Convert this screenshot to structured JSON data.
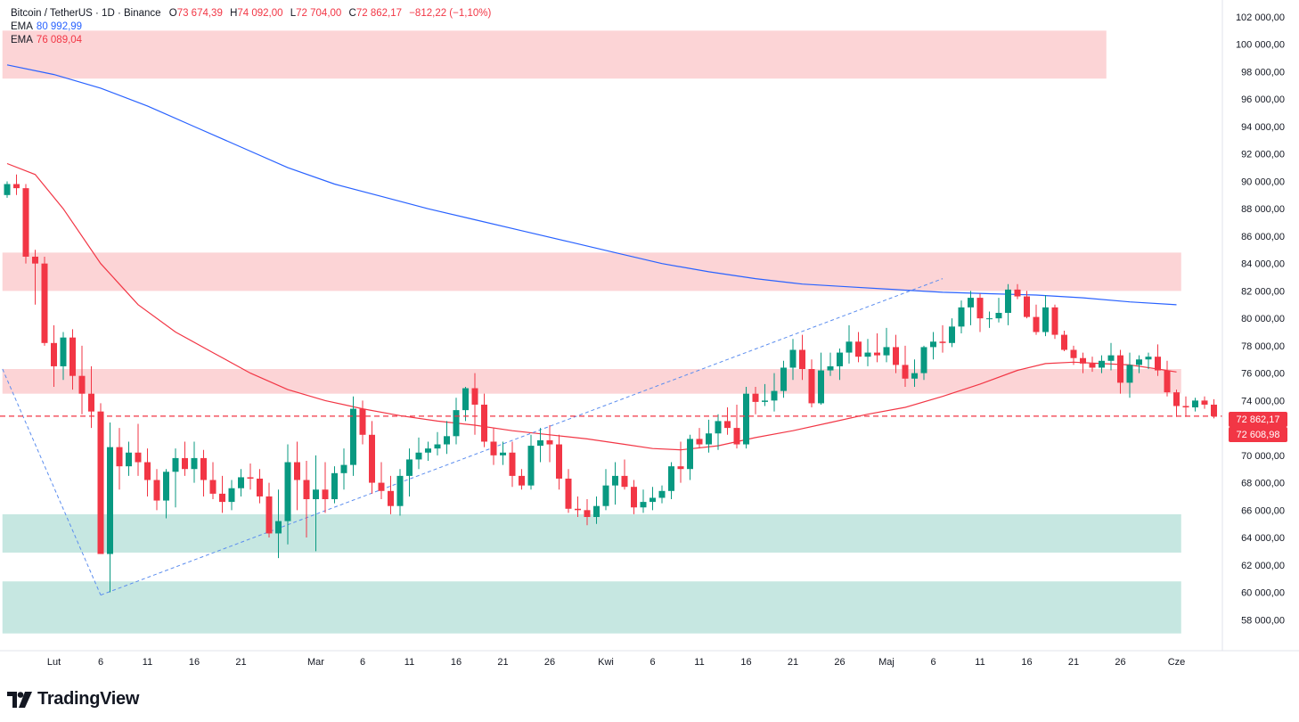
{
  "header": {
    "symbol": "Bitcoin / TetherUS · 1D · Binance",
    "o_label": "O",
    "o_value": "73 674,39",
    "h_label": "H",
    "h_value": "74 092,00",
    "l_label": "L",
    "l_value": "72 704,00",
    "c_label": "C",
    "c_value": "72 862,17",
    "change": "−812,22 (−1,10%)"
  },
  "indicators": [
    {
      "label": "EMA",
      "value": "80 992,99",
      "color": "#2962ff"
    },
    {
      "label": "EMA",
      "value": "76 089,04",
      "color": "#f23645"
    }
  ],
  "price_tags": {
    "last": "72 862,17",
    "second": "72 608,98"
  },
  "logo": {
    "text": "TradingView",
    "icon": "tradingview-logo-icon"
  },
  "colors": {
    "up": "#089981",
    "down": "#f23645",
    "ema_long": "#2962ff",
    "ema_short": "#f23645",
    "zone_red": "#fcd4d6",
    "zone_green": "#c6e7e1"
  },
  "chart_data": {
    "type": "candlestick",
    "title": "",
    "ylim": [
      56500,
      103000
    ],
    "y_ticks": [
      "102 000,00",
      "100 000,00",
      "98 000,00",
      "96 000,00",
      "94 000,00",
      "92 000,00",
      "90 000,00",
      "88 000,00",
      "86 000,00",
      "84 000,00",
      "82 000,00",
      "80 000,00",
      "78 000,00",
      "76 000,00",
      "74 000,00",
      "72 000,00",
      "70 000,00",
      "68 000,00",
      "66 000,00",
      "64 000,00",
      "62 000,00",
      "60 000,00",
      "58 000,00"
    ],
    "y_tick_values": [
      102000,
      100000,
      98000,
      96000,
      94000,
      92000,
      90000,
      88000,
      86000,
      84000,
      82000,
      80000,
      78000,
      76000,
      74000,
      72000,
      70000,
      68000,
      66000,
      64000,
      62000,
      60000,
      58000
    ],
    "x_ticks": [
      {
        "label": "Lut",
        "index": 5
      },
      {
        "label": "6",
        "index": 10
      },
      {
        "label": "11",
        "index": 15
      },
      {
        "label": "16",
        "index": 20
      },
      {
        "label": "21",
        "index": 25
      },
      {
        "label": "Mar",
        "index": 33
      },
      {
        "label": "6",
        "index": 38
      },
      {
        "label": "11",
        "index": 43
      },
      {
        "label": "16",
        "index": 48
      },
      {
        "label": "21",
        "index": 53
      },
      {
        "label": "26",
        "index": 58
      },
      {
        "label": "Kwi",
        "index": 64
      },
      {
        "label": "6",
        "index": 69
      },
      {
        "label": "11",
        "index": 74
      },
      {
        "label": "16",
        "index": 79
      },
      {
        "label": "21",
        "index": 84
      },
      {
        "label": "26",
        "index": 89
      },
      {
        "label": "Maj",
        "index": 94
      },
      {
        "label": "6",
        "index": 99
      },
      {
        "label": "11",
        "index": 104
      },
      {
        "label": "16",
        "index": 109
      },
      {
        "label": "21",
        "index": 114
      },
      {
        "label": "26",
        "index": 119
      },
      {
        "label": "Cze",
        "index": 125
      }
    ],
    "zones": [
      {
        "x0": -0.5,
        "x1": 117.5,
        "y0": 97500,
        "y1": 101000,
        "color": "red"
      },
      {
        "x0": -0.5,
        "x1": 125.5,
        "y0": 82000,
        "y1": 84800,
        "color": "red"
      },
      {
        "x0": -0.5,
        "x1": 125.5,
        "y0": 74500,
        "y1": 76300,
        "color": "red"
      },
      {
        "x0": -0.5,
        "x1": 125.5,
        "y0": 62900,
        "y1": 65700,
        "color": "green"
      },
      {
        "x0": -0.5,
        "x1": 125.5,
        "y0": 57000,
        "y1": 60800,
        "color": "green"
      }
    ],
    "candles": [
      [
        89000,
        90000,
        88800,
        89800
      ],
      [
        89800,
        90500,
        89000,
        89500
      ],
      [
        89500,
        89800,
        84000,
        84500
      ],
      [
        84500,
        85000,
        81000,
        84000
      ],
      [
        84000,
        84500,
        78000,
        78200
      ],
      [
        78200,
        79500,
        75000,
        76500
      ],
      [
        76500,
        79000,
        75500,
        78600
      ],
      [
        78600,
        79200,
        74800,
        75800
      ],
      [
        75800,
        78000,
        73000,
        74500
      ],
      [
        74500,
        76500,
        72000,
        73200
      ],
      [
        73200,
        73800,
        62800,
        62800
      ],
      [
        62800,
        72400,
        60000,
        70600
      ],
      [
        70600,
        72000,
        67500,
        69200
      ],
      [
        69200,
        71000,
        68500,
        70200
      ],
      [
        70200,
        72300,
        68500,
        69500
      ],
      [
        69500,
        70500,
        67000,
        68200
      ],
      [
        68200,
        69000,
        66000,
        66700
      ],
      [
        66700,
        69000,
        65400,
        68800
      ],
      [
        68800,
        70500,
        66200,
        69800
      ],
      [
        69800,
        71000,
        68500,
        69000
      ],
      [
        69000,
        71000,
        68000,
        69800
      ],
      [
        69800,
        70400,
        67000,
        68200
      ],
      [
        68200,
        69500,
        66800,
        67200
      ],
      [
        67200,
        68500,
        65800,
        66600
      ],
      [
        66600,
        68200,
        66000,
        67600
      ],
      [
        67600,
        69000,
        67000,
        68400
      ],
      [
        68400,
        69400,
        67500,
        68300
      ],
      [
        68300,
        69000,
        66500,
        67000
      ],
      [
        67000,
        68000,
        64000,
        64300
      ],
      [
        64300,
        67500,
        62500,
        65200
      ],
      [
        65200,
        70800,
        63500,
        69500
      ],
      [
        69500,
        71000,
        66000,
        68200
      ],
      [
        68200,
        69600,
        64000,
        66800
      ],
      [
        66800,
        70000,
        63000,
        67500
      ],
      [
        67500,
        69500,
        65800,
        66800
      ],
      [
        66800,
        69200,
        66500,
        68700
      ],
      [
        68700,
        70500,
        67500,
        69300
      ],
      [
        69300,
        74300,
        68500,
        73400
      ],
      [
        73400,
        74000,
        70800,
        71500
      ],
      [
        71500,
        72500,
        67200,
        68000
      ],
      [
        68000,
        69500,
        66800,
        67400
      ],
      [
        67400,
        68500,
        65700,
        66300
      ],
      [
        66300,
        69000,
        65600,
        68500
      ],
      [
        68500,
        70500,
        67000,
        69700
      ],
      [
        69700,
        71300,
        69000,
        70200
      ],
      [
        70200,
        71000,
        69600,
        70500
      ],
      [
        70500,
        71700,
        70000,
        70800
      ],
      [
        70800,
        72500,
        70100,
        71400
      ],
      [
        71400,
        74200,
        70800,
        73300
      ],
      [
        73300,
        75000,
        72500,
        74900
      ],
      [
        74900,
        76000,
        71500,
        73700
      ],
      [
        73700,
        74500,
        70600,
        71000
      ],
      [
        71000,
        72000,
        69300,
        70000
      ],
      [
        70000,
        71000,
        69300,
        70200
      ],
      [
        70200,
        71000,
        67700,
        68500
      ],
      [
        68500,
        69000,
        67500,
        67800
      ],
      [
        67800,
        71500,
        67500,
        70700
      ],
      [
        70700,
        72000,
        69500,
        71100
      ],
      [
        71100,
        72200,
        69500,
        70800
      ],
      [
        70800,
        71500,
        67500,
        68300
      ],
      [
        68300,
        69000,
        65800,
        66100
      ],
      [
        66100,
        67000,
        65500,
        66000
      ],
      [
        66000,
        66800,
        64900,
        65500
      ],
      [
        65500,
        67000,
        65000,
        66300
      ],
      [
        66300,
        69000,
        66000,
        67800
      ],
      [
        67800,
        69500,
        66400,
        68500
      ],
      [
        68500,
        69700,
        67500,
        67700
      ],
      [
        67700,
        68200,
        65700,
        66200
      ],
      [
        66200,
        67500,
        65800,
        66600
      ],
      [
        66600,
        67700,
        66000,
        66900
      ],
      [
        66900,
        67800,
        66500,
        67400
      ],
      [
        67400,
        69500,
        66800,
        69200
      ],
      [
        69200,
        71000,
        68000,
        69000
      ],
      [
        69000,
        71500,
        68200,
        71200
      ],
      [
        71200,
        72000,
        70500,
        70800
      ],
      [
        70800,
        72600,
        70200,
        71600
      ],
      [
        71600,
        73000,
        70400,
        72500
      ],
      [
        72500,
        73500,
        71500,
        72000
      ],
      [
        72000,
        73700,
        70500,
        70800
      ],
      [
        70800,
        75000,
        70500,
        74500
      ],
      [
        74500,
        75000,
        73000,
        73900
      ],
      [
        73900,
        75200,
        73600,
        74000
      ],
      [
        74000,
        76000,
        73200,
        74700
      ],
      [
        74700,
        76900,
        74200,
        76400
      ],
      [
        76400,
        78500,
        75500,
        77700
      ],
      [
        77700,
        78800,
        75500,
        76300
      ],
      [
        76300,
        77000,
        73500,
        73800
      ],
      [
        73800,
        77500,
        73700,
        76200
      ],
      [
        76200,
        77500,
        75800,
        76500
      ],
      [
        76500,
        77800,
        75500,
        77500
      ],
      [
        77500,
        79500,
        76700,
        78300
      ],
      [
        78300,
        79000,
        76800,
        77200
      ],
      [
        77200,
        78500,
        76500,
        77500
      ],
      [
        77500,
        78900,
        76800,
        77300
      ],
      [
        77300,
        79300,
        76800,
        77900
      ],
      [
        77900,
        78800,
        76000,
        76600
      ],
      [
        76600,
        78000,
        75000,
        75600
      ],
      [
        75600,
        77000,
        75000,
        76000
      ],
      [
        76000,
        78000,
        75500,
        77900
      ],
      [
        77900,
        79000,
        77000,
        78300
      ],
      [
        78300,
        79500,
        77500,
        78200
      ],
      [
        78200,
        80000,
        77900,
        79400
      ],
      [
        79400,
        81300,
        78900,
        80800
      ],
      [
        80800,
        82000,
        79500,
        81500
      ],
      [
        81500,
        81800,
        79000,
        80000
      ],
      [
        80000,
        80500,
        79300,
        80000
      ],
      [
        80000,
        81500,
        79700,
        80400
      ],
      [
        80400,
        82500,
        79500,
        82100
      ],
      [
        82100,
        82500,
        81400,
        81600
      ],
      [
        81600,
        82000,
        80000,
        80100
      ],
      [
        80100,
        81000,
        78800,
        79000
      ],
      [
        79000,
        81700,
        78700,
        80800
      ],
      [
        80800,
        81000,
        78500,
        78800
      ],
      [
        78800,
        79100,
        77600,
        77700
      ],
      [
        77700,
        78000,
        76600,
        77100
      ],
      [
        77100,
        77500,
        76000,
        76700
      ],
      [
        76700,
        77200,
        76100,
        76400
      ],
      [
        76400,
        77300,
        76000,
        76900
      ],
      [
        76900,
        78200,
        76200,
        77300
      ],
      [
        77300,
        77700,
        74500,
        75300
      ],
      [
        75300,
        77500,
        74200,
        76600
      ],
      [
        76600,
        77300,
        76000,
        77000
      ],
      [
        77000,
        77500,
        76300,
        77200
      ],
      [
        77200,
        78100,
        75800,
        76200
      ],
      [
        76200,
        76900,
        74300,
        74600
      ],
      [
        74600,
        74800,
        72800,
        73600
      ],
      [
        73600,
        74300,
        72800,
        73500
      ],
      [
        73500,
        74200,
        73200,
        74000
      ],
      [
        74000,
        74300,
        73400,
        73700
      ],
      [
        73700,
        74100,
        72700,
        72862
      ]
    ],
    "series": [
      {
        "name": "EMA",
        "kind": "ema_long",
        "points": [
          [
            0,
            98500
          ],
          [
            5,
            97800
          ],
          [
            10,
            96800
          ],
          [
            15,
            95500
          ],
          [
            20,
            94000
          ],
          [
            25,
            92500
          ],
          [
            30,
            91000
          ],
          [
            35,
            89800
          ],
          [
            40,
            88900
          ],
          [
            45,
            88000
          ],
          [
            50,
            87200
          ],
          [
            55,
            86400
          ],
          [
            60,
            85600
          ],
          [
            65,
            84800
          ],
          [
            70,
            84000
          ],
          [
            75,
            83400
          ],
          [
            80,
            82900
          ],
          [
            85,
            82500
          ],
          [
            90,
            82300
          ],
          [
            95,
            82100
          ],
          [
            100,
            81900
          ],
          [
            105,
            81800
          ],
          [
            110,
            81700
          ],
          [
            115,
            81500
          ],
          [
            120,
            81200
          ],
          [
            125,
            80993
          ]
        ]
      },
      {
        "name": "EMA",
        "kind": "ema_short",
        "points": [
          [
            0,
            91300
          ],
          [
            3,
            90500
          ],
          [
            6,
            88000
          ],
          [
            10,
            84000
          ],
          [
            14,
            81000
          ],
          [
            18,
            79000
          ],
          [
            22,
            77500
          ],
          [
            26,
            76000
          ],
          [
            30,
            74800
          ],
          [
            34,
            74000
          ],
          [
            38,
            73400
          ],
          [
            42,
            72900
          ],
          [
            46,
            72500
          ],
          [
            50,
            72200
          ],
          [
            54,
            71800
          ],
          [
            58,
            71500
          ],
          [
            62,
            71200
          ],
          [
            66,
            70800
          ],
          [
            69,
            70500
          ],
          [
            72,
            70400
          ],
          [
            76,
            70700
          ],
          [
            80,
            71300
          ],
          [
            84,
            71800
          ],
          [
            88,
            72400
          ],
          [
            92,
            73000
          ],
          [
            96,
            73500
          ],
          [
            100,
            74300
          ],
          [
            104,
            75200
          ],
          [
            108,
            76200
          ],
          [
            111,
            76700
          ],
          [
            114,
            76800
          ],
          [
            117,
            76700
          ],
          [
            120,
            76600
          ],
          [
            123,
            76300
          ],
          [
            125,
            76089
          ]
        ]
      },
      {
        "name": "",
        "kind": "trend_dashed",
        "points": [
          [
            -0.5,
            76300
          ],
          [
            10,
            59800
          ]
        ]
      },
      {
        "name": "",
        "kind": "trend_dashed",
        "points": [
          [
            10,
            59800
          ],
          [
            100,
            82900
          ]
        ]
      }
    ],
    "last_price": 72862.17,
    "second_price": 72608.98
  }
}
